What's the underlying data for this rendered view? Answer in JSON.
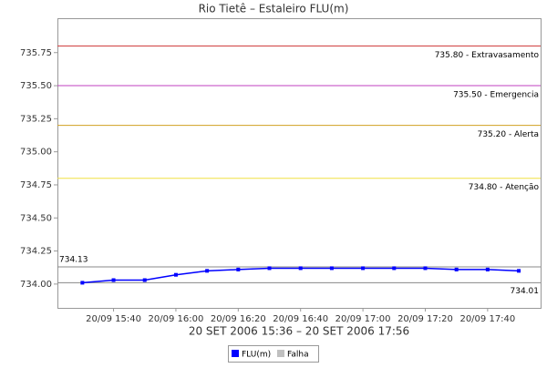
{
  "chart_data": {
    "type": "line",
    "title": "Rio Tietê – Estaleiro FLU(m)",
    "xlabel": "20 SET 2006 15:36 – 20 SET 2006 17:56",
    "x": [
      "20/09 15:30",
      "20/09 15:40",
      "20/09 15:50",
      "20/09 16:00",
      "20/09 16:10",
      "20/09 16:20",
      "20/09 16:30",
      "20/09 16:40",
      "20/09 16:50",
      "20/09 17:00",
      "20/09 17:10",
      "20/09 17:20",
      "20/09 17:30",
      "20/09 17:40",
      "20/09 17:50"
    ],
    "series": [
      {
        "name": "FLU(m)",
        "color": "#0000ff",
        "values": [
          734.01,
          734.03,
          734.03,
          734.07,
          734.1,
          734.11,
          734.12,
          734.12,
          734.12,
          734.12,
          734.12,
          734.12,
          734.11,
          734.11,
          734.1
        ]
      },
      {
        "name": "Falha",
        "color": "#c0c0c0",
        "values": [
          null,
          null,
          null,
          null,
          null,
          null,
          null,
          null,
          null,
          null,
          null,
          null,
          null,
          null,
          null
        ]
      }
    ],
    "xlim": [
      "20/09 15:22",
      "20/09 17:57"
    ],
    "xticks": [
      "20/09 15:40",
      "20/09 16:00",
      "20/09 16:20",
      "20/09 16:40",
      "20/09 17:00",
      "20/09 17:20",
      "20/09 17:40"
    ],
    "ylim": [
      733.82,
      736.01
    ],
    "yticks": [
      {
        "value": 734,
        "label": "734.00"
      },
      {
        "value": 734.25,
        "label": "734.25"
      },
      {
        "value": 734.5,
        "label": "734.50"
      },
      {
        "value": 734.75,
        "label": "734.75"
      },
      {
        "value": 735,
        "label": "735.00"
      },
      {
        "value": 735.25,
        "label": "735.25"
      },
      {
        "value": 735.5,
        "label": "735.50"
      },
      {
        "value": 735.75,
        "label": "735.75"
      }
    ],
    "thresholds": [
      {
        "value": 735.8,
        "label": "735.80 - Extravasamento",
        "color": "#d04040"
      },
      {
        "value": 735.5,
        "label": "735.50 - Emergencia",
        "color": "#c040c0"
      },
      {
        "value": 735.2,
        "label": "735.20 - Alerta",
        "color": "#d0a020"
      },
      {
        "value": 734.8,
        "label": "734.80 - Atenção",
        "color": "#f0e040"
      }
    ],
    "max": 734.13,
    "min": 734.01
  }
}
